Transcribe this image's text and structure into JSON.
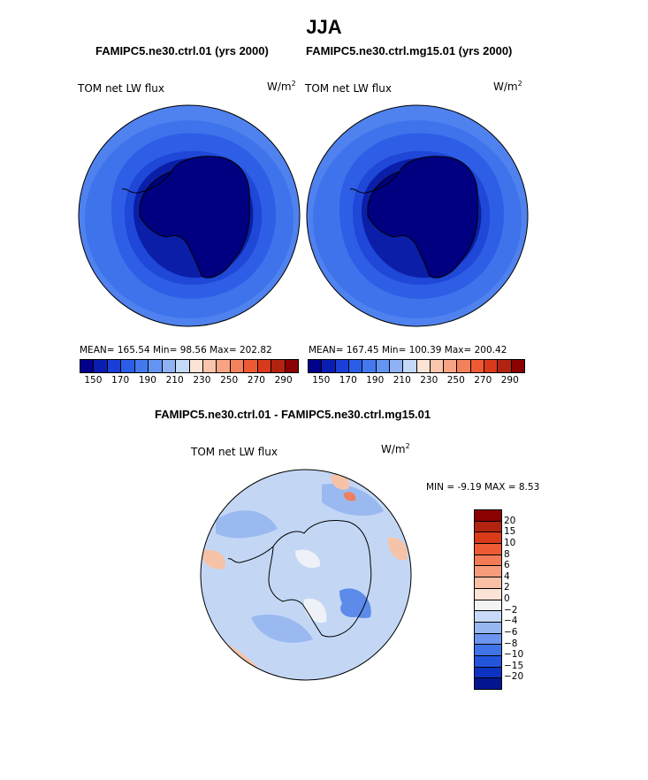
{
  "figure": {
    "title": "JJA",
    "panels": [
      {
        "title": "FAMIPC5.ne30.ctrl.01 (yrs 2000)",
        "variable": "TOM net LW flux",
        "units_base": "W/m",
        "units_exp": "2",
        "stats": "MEAN= 165.54   Min=  98.56   Max= 202.82"
      },
      {
        "title": "FAMIPC5.ne30.ctrl.mg15.01 (yrs 2000)",
        "variable": "TOM net LW flux",
        "units_base": "W/m",
        "units_exp": "2",
        "stats": "MEAN= 167.45   Min= 100.39   Max= 200.42"
      }
    ],
    "difference": {
      "title": "FAMIPC5.ne30.ctrl.01 - FAMIPC5.ne30.ctrl.mg15.01",
      "variable": "TOM net LW flux",
      "units_base": "W/m",
      "units_exp": "2",
      "minmax": "MIN =   -9.19 MAX =    8.53"
    },
    "colorbar_top": {
      "colors": [
        "#00008b",
        "#0a1db3",
        "#1a3fd6",
        "#2a5ee8",
        "#4479ee",
        "#6394f2",
        "#8fb2f5",
        "#c4d8f8",
        "#fbe4d5",
        "#f9c6ad",
        "#f6a483",
        "#f2825b",
        "#ee5a33",
        "#d93a1c",
        "#b22410",
        "#8b0000"
      ],
      "ticks": [
        "150",
        "170",
        "190",
        "210",
        "230",
        "250",
        "270",
        "290"
      ]
    },
    "colorbar_diff": {
      "colors": [
        "#8b0000",
        "#b22410",
        "#d83a1a",
        "#ee5a33",
        "#f37b55",
        "#f69c7c",
        "#f9c0a6",
        "#fbe3d6",
        "#f3f3f3",
        "#c6daf7",
        "#97b7f2",
        "#6b95ee",
        "#4173e8",
        "#2254dc",
        "#0c33c0",
        "#04168f"
      ],
      "ticks": [
        "20",
        "15",
        "10",
        "8",
        "6",
        "4",
        "2",
        "0",
        "−2",
        "−4",
        "−6",
        "−8",
        "−10",
        "−15",
        "−20"
      ]
    },
    "map_colors": {
      "ice_core": "#000080",
      "ice_edge": "#0a1ea8",
      "ring_a": "#1f47d8",
      "ring_b": "#2e5ee6",
      "ring_c": "#3f73ec",
      "ring_d": "#4f82ee",
      "diff_base": "#c3d7f5",
      "diff_mid": "#9ab9f0",
      "diff_dark": "#5d8bea",
      "diff_white": "#eef2f8",
      "diff_warm": "#f6c3a8",
      "diff_hot": "#ee8060"
    }
  }
}
